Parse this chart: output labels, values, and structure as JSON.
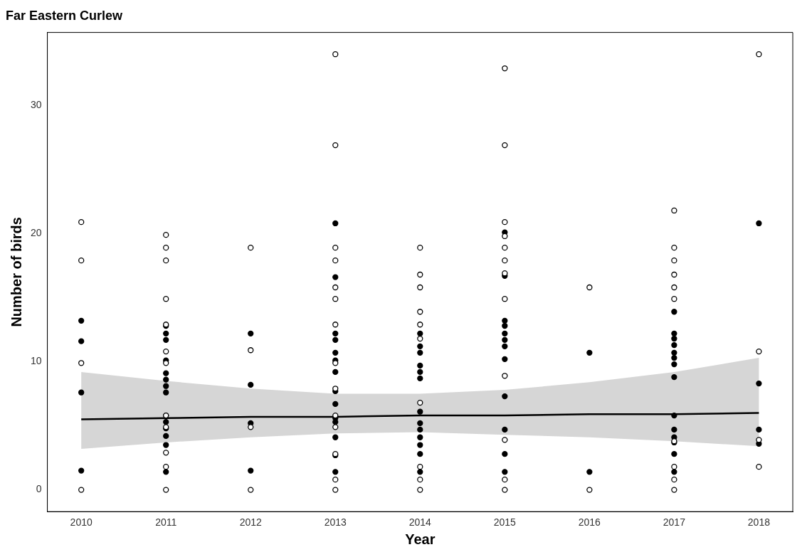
{
  "chart_data": {
    "type": "scatter",
    "title": "Far Eastern Curlew",
    "xlabel": "Year",
    "ylabel": "Number of birds",
    "xlim": [
      2009.6,
      2018.4
    ],
    "xticks": [
      2010,
      2011,
      2012,
      2013,
      2014,
      2015,
      2016,
      2017,
      2018
    ],
    "ylim": [
      -1.7,
      35.7
    ],
    "yticks": [
      0,
      10,
      20,
      30
    ],
    "grid": false,
    "legend": false,
    "marker": "circle",
    "series": [
      {
        "color": "#ffffff",
        "x": [
          2010,
          2010,
          2010,
          2010,
          2011,
          2011,
          2011,
          2011,
          2011,
          2011,
          2011,
          2011,
          2011,
          2011,
          2011,
          2011,
          2012,
          2012,
          2012,
          2012,
          2013,
          2013,
          2013,
          2013,
          2013,
          2013,
          2013,
          2013,
          2013,
          2013,
          2013,
          2013,
          2013,
          2013,
          2014,
          2014,
          2014,
          2014,
          2014,
          2014,
          2014,
          2014,
          2014,
          2014,
          2015,
          2015,
          2015,
          2015,
          2015,
          2015,
          2015,
          2015,
          2015,
          2015,
          2015,
          2015,
          2016,
          2016,
          2017,
          2017,
          2017,
          2017,
          2017,
          2017,
          2017,
          2017,
          2017,
          2017,
          2018,
          2018,
          2018,
          2018
        ],
        "values": [
          20.9,
          17.9,
          9.9,
          0,
          19.9,
          18.9,
          17.9,
          14.9,
          12.9,
          10.8,
          9.9,
          5.8,
          4.9,
          2.9,
          1.8,
          0,
          18.9,
          10.9,
          4.9,
          0,
          34,
          26.9,
          18.9,
          17.9,
          15.8,
          14.9,
          12.9,
          9.9,
          7.9,
          5.8,
          4.9,
          2.8,
          0.8,
          0,
          18.9,
          16.8,
          15.8,
          13.9,
          12.9,
          11.8,
          6.8,
          1.8,
          0.8,
          0,
          32.9,
          26.9,
          20.9,
          19.8,
          18.9,
          17.9,
          16.9,
          14.9,
          8.9,
          3.9,
          0.8,
          0,
          15.8,
          0,
          21.8,
          18.9,
          17.9,
          16.8,
          15.8,
          14.9,
          3.8,
          1.8,
          0.8,
          0,
          34,
          10.8,
          3.9,
          1.8
        ]
      },
      {
        "color": "#000000",
        "x": [
          2010,
          2010,
          2010,
          2010,
          2011,
          2011,
          2011,
          2011,
          2011,
          2011,
          2011,
          2011,
          2011,
          2011,
          2011,
          2011,
          2011,
          2011,
          2012,
          2012,
          2012,
          2012,
          2013,
          2013,
          2013,
          2013,
          2013,
          2013,
          2013,
          2013,
          2013,
          2013,
          2013,
          2013,
          2013,
          2013,
          2014,
          2014,
          2014,
          2014,
          2014,
          2014,
          2014,
          2014,
          2014,
          2014,
          2014,
          2014,
          2014,
          2015,
          2015,
          2015,
          2015,
          2015,
          2015,
          2015,
          2015,
          2015,
          2015,
          2015,
          2015,
          2016,
          2016,
          2017,
          2017,
          2017,
          2017,
          2017,
          2017,
          2017,
          2017,
          2017,
          2017,
          2017,
          2017,
          2017,
          2017,
          2018,
          2018,
          2018,
          2018
        ],
        "values": [
          13.2,
          11.6,
          7.6,
          1.5,
          12.8,
          12.2,
          11.7,
          10.1,
          9.1,
          8.6,
          8.1,
          7.6,
          5.8,
          5.3,
          4.8,
          4.2,
          3.5,
          1.4,
          12.2,
          8.2,
          5.2,
          1.5,
          20.8,
          16.6,
          12.2,
          11.7,
          10.7,
          10.1,
          9.2,
          7.7,
          6.7,
          5.6,
          5.3,
          4.1,
          2.7,
          1.4,
          12.2,
          11.2,
          10.7,
          9.7,
          9.2,
          8.7,
          6.1,
          5.2,
          4.7,
          4.1,
          3.5,
          2.8,
          1.4,
          20.1,
          16.7,
          13.2,
          12.8,
          12.2,
          11.7,
          11.2,
          10.2,
          7.3,
          4.7,
          2.8,
          1.4,
          10.7,
          1.4,
          13.9,
          12.2,
          11.8,
          11.3,
          10.7,
          10.3,
          9.8,
          8.8,
          5.8,
          4.7,
          4.1,
          3.7,
          2.8,
          1.4,
          20.8,
          8.3,
          4.7,
          3.6
        ]
      },
      {
        "type": "line",
        "marker": "none",
        "color": "#000000",
        "x": [
          2010,
          2011,
          2012,
          2013,
          2014,
          2015,
          2016,
          2017,
          2018
        ],
        "values": [
          5.5,
          5.6,
          5.7,
          5.7,
          5.8,
          5.8,
          5.9,
          5.9,
          6.0
        ],
        "lower": [
          3.2,
          3.7,
          4.1,
          4.4,
          4.5,
          4.3,
          4.1,
          3.8,
          3.4
        ],
        "upper": [
          9.2,
          8.5,
          7.9,
          7.5,
          7.5,
          7.8,
          8.4,
          9.2,
          10.3
        ]
      }
    ]
  }
}
